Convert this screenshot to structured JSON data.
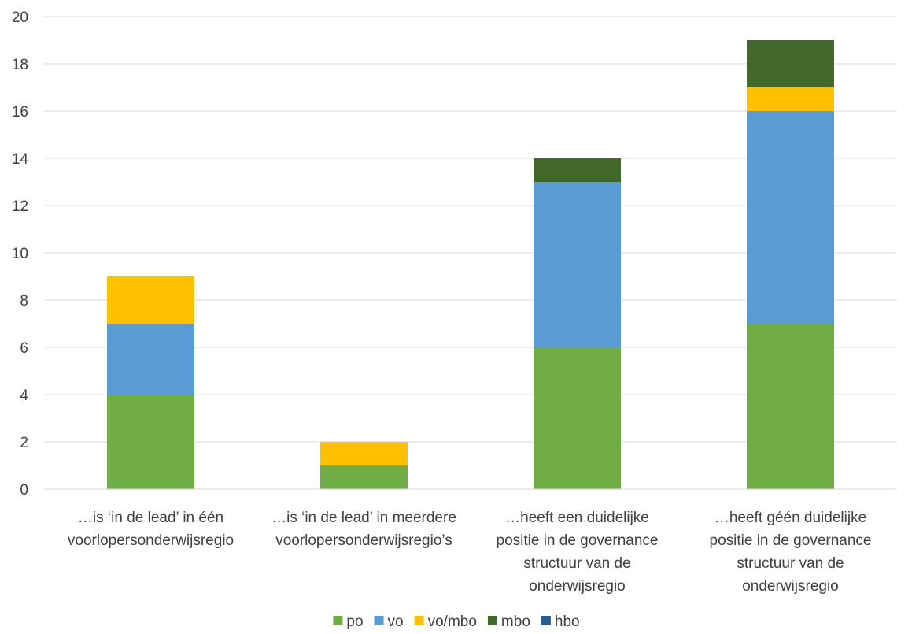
{
  "chart_data": {
    "type": "bar",
    "stacked": true,
    "title": "",
    "xlabel": "",
    "ylabel": "",
    "ylim": [
      0,
      20
    ],
    "yticks": [
      0,
      2,
      4,
      6,
      8,
      10,
      12,
      14,
      16,
      18,
      20
    ],
    "grid": true,
    "legend": "bottom",
    "categories": [
      [
        "…is ‘in de lead’ in één",
        "voorlopersonderwijsregio"
      ],
      [
        "…is ‘in de lead’ in meerdere",
        "voorlopersonderwijsregio’s"
      ],
      [
        "…heeft een duidelijke",
        "positie in de governance",
        "structuur van de",
        "onderwijsregio"
      ],
      [
        "…heeft géén duidelijke",
        "positie in de governance",
        "structuur van de",
        "onderwijsregio"
      ]
    ],
    "series": [
      {
        "name": "po",
        "color": "#70AD47",
        "values": [
          4,
          1,
          6,
          7
        ]
      },
      {
        "name": "vo",
        "color": "#5B9BD5",
        "values": [
          3,
          0,
          7,
          9
        ]
      },
      {
        "name": "vo/mbo",
        "color": "#FFC000",
        "values": [
          2,
          1,
          0,
          1
        ]
      },
      {
        "name": "mbo",
        "color": "#43682B",
        "values": [
          0,
          0,
          1,
          2
        ]
      },
      {
        "name": "hbo",
        "color": "#255E91",
        "values": [
          0,
          0,
          0,
          0
        ]
      }
    ]
  }
}
